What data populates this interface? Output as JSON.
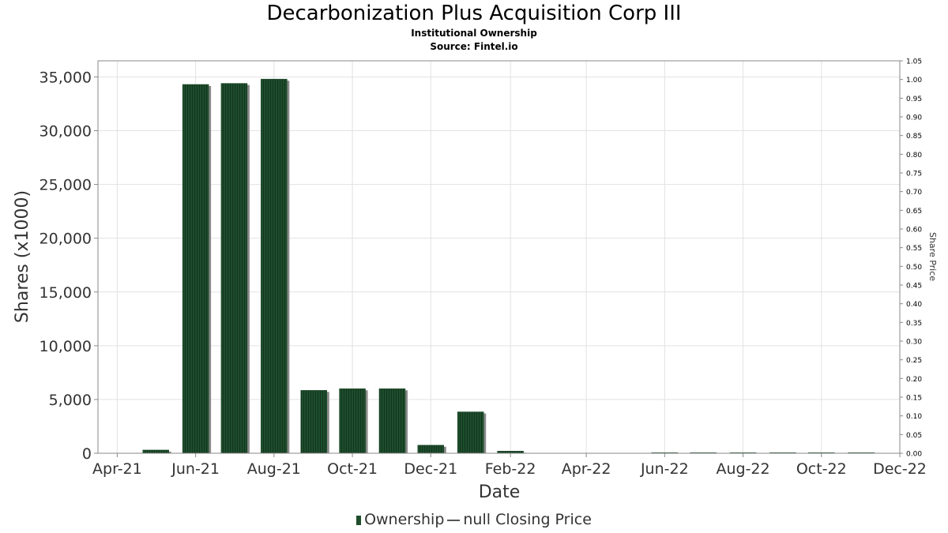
{
  "header": {
    "title": "Decarbonization Plus Acquisition Corp III",
    "subtitle": "Institutional Ownership",
    "source": "Source: Fintel.io"
  },
  "legend": {
    "ownership": "Ownership",
    "closing_price": "null Closing Price"
  },
  "colors": {
    "bar": "#1e4d2b",
    "bar_shadow": "#8a8a8a",
    "grid": "#e2e2e2",
    "frame": "#888888"
  },
  "chart_data": {
    "type": "bar",
    "xlabel": "Date",
    "ylabel": "Shares (x1000)",
    "y2label": "Share Price",
    "ylim": [
      0,
      36500
    ],
    "y2lim": [
      0,
      1.05
    ],
    "xlim": [
      "2021-03-17",
      "2022-12-01"
    ],
    "grid": true,
    "legend_position": "bottom-center",
    "y_ticks": [
      0,
      5000,
      10000,
      15000,
      20000,
      25000,
      30000,
      35000
    ],
    "y_tick_labels": [
      "0",
      "5,000",
      "10,000",
      "15,000",
      "20,000",
      "25,000",
      "30,000",
      "35,000"
    ],
    "y2_ticks": [
      "0.00",
      "0.05",
      "0.10",
      "0.15",
      "0.20",
      "0.25",
      "0.30",
      "0.35",
      "0.40",
      "0.45",
      "0.50",
      "0.55",
      "0.60",
      "0.65",
      "0.70",
      "0.75",
      "0.80",
      "0.85",
      "0.90",
      "0.95",
      "1.00",
      "1.05"
    ],
    "x_ticks": [
      {
        "date": "2021-04-01",
        "label": "Apr-21"
      },
      {
        "date": "2021-06-01",
        "label": "Jun-21"
      },
      {
        "date": "2021-08-01",
        "label": "Aug-21"
      },
      {
        "date": "2021-10-01",
        "label": "Oct-21"
      },
      {
        "date": "2021-12-01",
        "label": "Dec-21"
      },
      {
        "date": "2022-02-01",
        "label": "Feb-22"
      },
      {
        "date": "2022-04-01",
        "label": "Apr-22"
      },
      {
        "date": "2022-06-01",
        "label": "Jun-22"
      },
      {
        "date": "2022-08-01",
        "label": "Aug-22"
      },
      {
        "date": "2022-10-01",
        "label": "Oct-22"
      },
      {
        "date": "2022-12-01",
        "label": "Dec-22"
      }
    ],
    "series": [
      {
        "name": "Ownership",
        "points": [
          {
            "date": "2021-05-01",
            "value": 300
          },
          {
            "date": "2021-06-01",
            "value": 34300
          },
          {
            "date": "2021-07-01",
            "value": 34400
          },
          {
            "date": "2021-08-01",
            "value": 34800
          },
          {
            "date": "2021-09-01",
            "value": 5850
          },
          {
            "date": "2021-10-01",
            "value": 6000
          },
          {
            "date": "2021-11-01",
            "value": 6000
          },
          {
            "date": "2021-12-01",
            "value": 750
          },
          {
            "date": "2022-01-01",
            "value": 3850
          },
          {
            "date": "2022-02-01",
            "value": 200
          },
          {
            "date": "2022-06-01",
            "value": 20
          },
          {
            "date": "2022-07-01",
            "value": 20
          },
          {
            "date": "2022-08-01",
            "value": 20
          },
          {
            "date": "2022-09-01",
            "value": 20
          },
          {
            "date": "2022-10-01",
            "value": 20
          },
          {
            "date": "2022-11-01",
            "value": 20
          }
        ]
      }
    ]
  }
}
